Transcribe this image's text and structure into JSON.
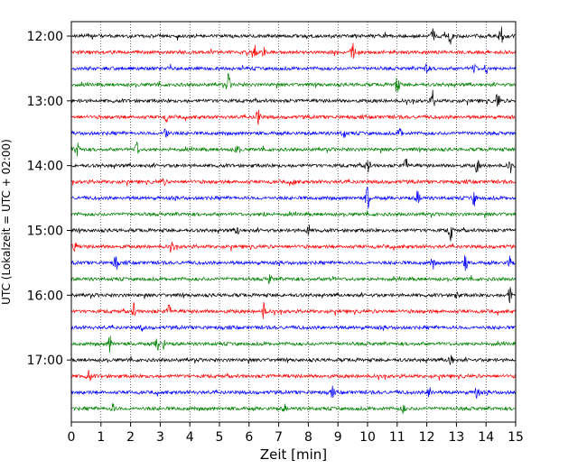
{
  "chart_data": {
    "type": "line",
    "title": "",
    "xlabel": "Zeit  [min]",
    "ylabel": "UTC (Lokalzeit = UTC + 02:00)",
    "xlim": [
      0,
      15
    ],
    "x_ticks": [
      "0",
      "1",
      "2",
      "3",
      "4",
      "5",
      "6",
      "7",
      "8",
      "9",
      "10",
      "11",
      "12",
      "13",
      "14",
      "15"
    ],
    "y_tick_labels": [
      "12:00",
      "13:00",
      "14:00",
      "15:00",
      "16:00",
      "17:00"
    ],
    "grid": "vertical dotted",
    "trace_colors": [
      "#000000",
      "#ff0000",
      "#0000ff",
      "#008000"
    ],
    "traces": [
      {
        "start": "12:00",
        "color": "#000000",
        "events": [
          [
            12.2,
            9
          ],
          [
            12.8,
            9
          ],
          [
            14.5,
            12
          ]
        ]
      },
      {
        "start": "12:15",
        "color": "#ff0000",
        "events": [
          [
            6.2,
            8
          ],
          [
            6.5,
            5
          ],
          [
            9.5,
            11
          ]
        ]
      },
      {
        "start": "12:30",
        "color": "#0000ff",
        "events": [
          [
            12.0,
            6
          ],
          [
            13.6,
            6
          ],
          [
            14.0,
            5
          ]
        ]
      },
      {
        "start": "12:45",
        "color": "#008000",
        "events": [
          [
            5.3,
            11
          ],
          [
            11.0,
            11
          ]
        ]
      },
      {
        "start": "13:00",
        "color": "#000000",
        "events": [
          [
            12.2,
            10
          ],
          [
            14.4,
            10
          ]
        ]
      },
      {
        "start": "13:15",
        "color": "#ff0000",
        "events": [
          [
            6.3,
            10
          ],
          [
            3.2,
            4
          ]
        ]
      },
      {
        "start": "13:30",
        "color": "#0000ff",
        "events": [
          [
            3.2,
            9
          ],
          [
            9.2,
            5
          ],
          [
            11.1,
            6
          ]
        ]
      },
      {
        "start": "13:45",
        "color": "#008000",
        "events": [
          [
            0.2,
            9
          ],
          [
            2.2,
            8
          ],
          [
            5.6,
            6
          ]
        ]
      },
      {
        "start": "14:00",
        "color": "#000000",
        "events": [
          [
            10.0,
            11
          ],
          [
            11.3,
            8
          ],
          [
            13.7,
            8
          ],
          [
            14.8,
            6
          ]
        ]
      },
      {
        "start": "14:15",
        "color": "#ff0000",
        "events": [
          [
            3.1,
            4
          ],
          [
            7.5,
            3
          ]
        ]
      },
      {
        "start": "14:30",
        "color": "#0000ff",
        "events": [
          [
            10.0,
            14
          ],
          [
            11.7,
            9
          ],
          [
            13.6,
            8
          ]
        ]
      },
      {
        "start": "14:45",
        "color": "#008000",
        "events": [
          [
            6.5,
            2
          ]
        ]
      },
      {
        "start": "15:00",
        "color": "#000000",
        "events": [
          [
            5.6,
            5
          ],
          [
            8.0,
            6
          ],
          [
            12.8,
            11
          ]
        ]
      },
      {
        "start": "15:15",
        "color": "#ff0000",
        "events": [
          [
            0.1,
            7
          ],
          [
            3.4,
            5
          ]
        ]
      },
      {
        "start": "15:30",
        "color": "#0000ff",
        "events": [
          [
            1.5,
            9
          ],
          [
            12.2,
            6
          ],
          [
            13.3,
            9
          ],
          [
            14.8,
            8
          ]
        ]
      },
      {
        "start": "15:45",
        "color": "#008000",
        "events": [
          [
            6.7,
            5
          ],
          [
            8.8,
            4
          ]
        ]
      },
      {
        "start": "16:00",
        "color": "#000000",
        "events": [
          [
            14.8,
            10
          ],
          [
            13.0,
            5
          ]
        ]
      },
      {
        "start": "16:15",
        "color": "#ff0000",
        "events": [
          [
            2.1,
            8
          ],
          [
            3.3,
            7
          ],
          [
            6.5,
            9
          ]
        ]
      },
      {
        "start": "16:30",
        "color": "#0000ff",
        "events": [
          [
            2.4,
            3
          ]
        ]
      },
      {
        "start": "16:45",
        "color": "#008000",
        "events": [
          [
            1.3,
            9
          ],
          [
            2.9,
            8
          ],
          [
            3.1,
            5
          ]
        ]
      },
      {
        "start": "17:00",
        "color": "#000000",
        "events": [
          [
            12.8,
            9
          ]
        ]
      },
      {
        "start": "17:15",
        "color": "#ff0000",
        "events": [
          [
            0.6,
            7
          ]
        ]
      },
      {
        "start": "17:30",
        "color": "#0000ff",
        "events": [
          [
            8.8,
            6
          ],
          [
            12.1,
            9
          ],
          [
            13.7,
            8
          ]
        ]
      },
      {
        "start": "17:45",
        "color": "#008000",
        "events": [
          [
            1.4,
            5
          ],
          [
            7.2,
            4
          ],
          [
            11.2,
            5
          ]
        ]
      }
    ]
  }
}
